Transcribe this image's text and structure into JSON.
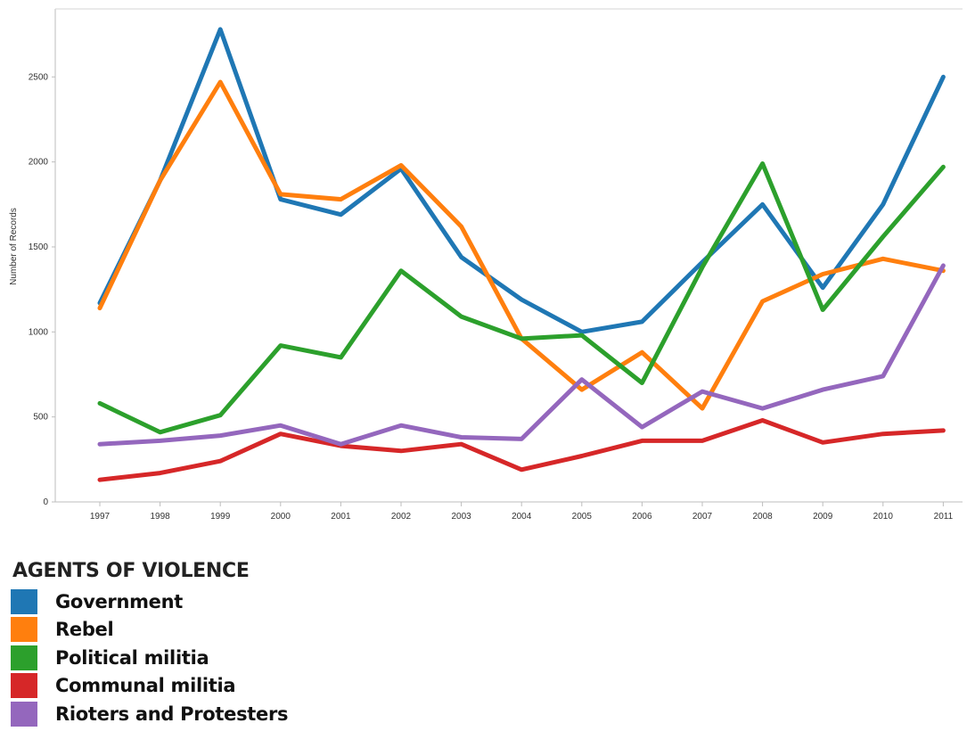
{
  "chart_data": {
    "type": "line",
    "title": "",
    "xlabel": "",
    "ylabel": "Number of Records",
    "ylim": [
      0,
      2900
    ],
    "yticks": [
      0,
      500,
      1000,
      1500,
      2000,
      2500
    ],
    "x": [
      "1997",
      "1998",
      "1999",
      "2000",
      "2001",
      "2002",
      "2003",
      "2004",
      "2005",
      "2006",
      "2007",
      "2008",
      "2009",
      "2010",
      "2011"
    ],
    "grid": false,
    "legend_position": "bottom-left",
    "legend_title": "AGENTS OF VIOLENCE",
    "series": [
      {
        "name": "Government",
        "color": "#1f77b4",
        "values": [
          1170,
          1890,
          2780,
          1780,
          1690,
          1960,
          1440,
          1190,
          1000,
          1060,
          1410,
          1750,
          1260,
          1750,
          2500
        ]
      },
      {
        "name": "Rebel",
        "color": "#ff7f0e",
        "values": [
          1140,
          1890,
          2470,
          1810,
          1780,
          1980,
          1620,
          960,
          660,
          880,
          550,
          1180,
          1340,
          1430,
          1360
        ]
      },
      {
        "name": "Political militia",
        "color": "#2ca02c",
        "values": [
          580,
          410,
          510,
          920,
          850,
          1360,
          1090,
          960,
          980,
          700,
          1380,
          1990,
          1130,
          1560,
          1970
        ]
      },
      {
        "name": "Communal militia",
        "color": "#d62728",
        "values": [
          130,
          170,
          240,
          400,
          330,
          300,
          340,
          190,
          270,
          360,
          360,
          480,
          350,
          400,
          420
        ]
      },
      {
        "name": "Rioters and Protesters",
        "color": "#9467bd",
        "values": [
          340,
          360,
          390,
          450,
          340,
          450,
          380,
          370,
          720,
          440,
          650,
          550,
          660,
          740,
          1390
        ]
      }
    ]
  }
}
